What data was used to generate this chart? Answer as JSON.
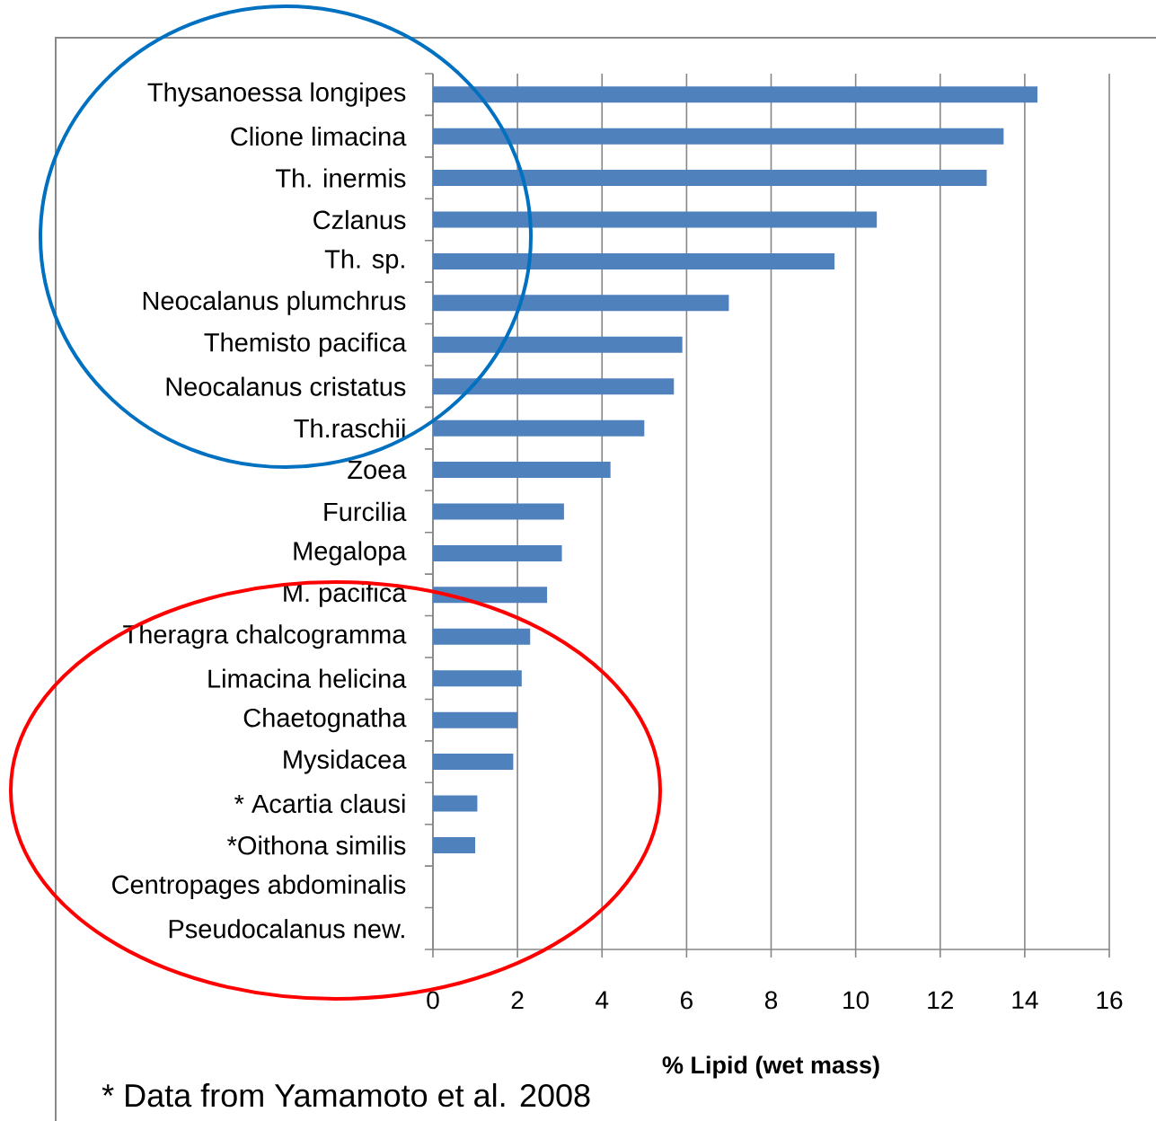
{
  "chart_data": {
    "type": "bar",
    "orientation": "horizontal",
    "xlabel": "% Lipid (wet mass)",
    "categories": [
      "Thysanoessa longipes",
      "Clione limacina",
      "Th. inermis",
      "Czlanus",
      "Th. sp.",
      "Neocalanus plumchrus",
      "Themisto pacifica",
      "Neocalanus cristatus",
      "Th.raschii",
      "Zoea",
      "Furcilia",
      "Megalopa",
      "M. pacifica",
      "Theragra chalcogramma",
      "Limacina helicina",
      "Chaetognatha",
      "Mysidacea",
      "* Acartia clausi",
      "*Oithona similis",
      "Centropages abdominalis",
      "Pseudocalanus new."
    ],
    "values": [
      14.3,
      13.5,
      13.1,
      10.5,
      9.5,
      7.0,
      5.9,
      5.7,
      5.0,
      4.2,
      3.1,
      3.05,
      2.7,
      2.3,
      2.1,
      2.0,
      1.9,
      1.05,
      1.0,
      null,
      null
    ],
    "color": "#4f81bd",
    "xlim": [
      0,
      16
    ],
    "xticks": [
      0,
      2,
      4,
      6,
      8,
      10,
      12,
      14,
      16
    ],
    "grid": "x",
    "annotations": [
      "* Data from Yamamoto et al. 2008"
    ]
  }
}
